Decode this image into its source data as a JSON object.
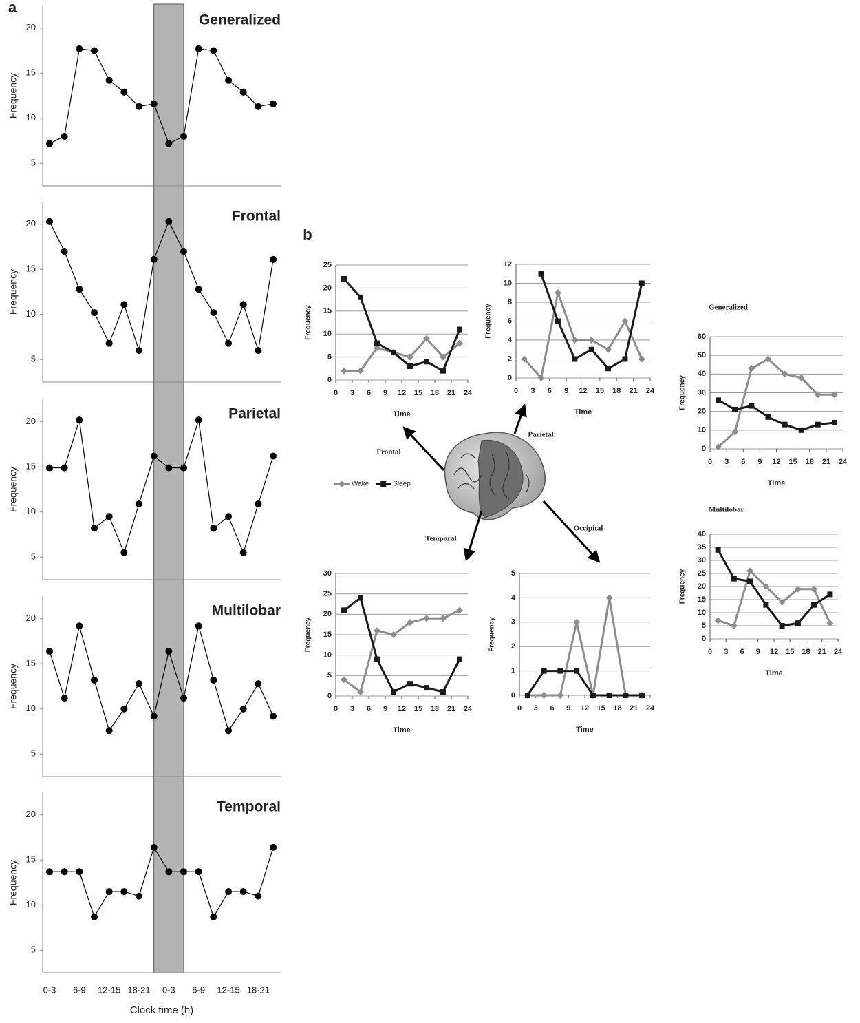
{
  "chart_data": [
    {
      "type": "line",
      "panel": "a",
      "title": "Generalized",
      "ylabel": "Frequency",
      "ylim": [
        2.5,
        22.5
      ],
      "yticks": [
        5,
        10,
        15,
        20
      ],
      "color": "#000000",
      "values": [
        7.2,
        8,
        17.7,
        17.5,
        14.2,
        12.9,
        11.3,
        11.6,
        7.2,
        8,
        17.7,
        17.5,
        14.2,
        12.9,
        11.3,
        11.6
      ]
    },
    {
      "type": "line",
      "title": "Frontal",
      "ylabel": "Frequency",
      "ylim": [
        2.5,
        22.5
      ],
      "yticks": [
        5,
        10,
        15,
        20
      ],
      "color": "#000000",
      "values": [
        20.3,
        17,
        12.8,
        10.2,
        6.8,
        11.1,
        6,
        16.1,
        20.3,
        17,
        12.8,
        10.2,
        6.8,
        11.1,
        6,
        16.1
      ]
    },
    {
      "type": "line",
      "title": "Parietal",
      "ylabel": "Frequency",
      "ylim": [
        2.5,
        22.5
      ],
      "yticks": [
        5,
        10,
        15,
        20
      ],
      "color": "#000000",
      "values": [
        14.9,
        14.9,
        20.2,
        8.2,
        9.5,
        5.5,
        10.9,
        16.2,
        14.9,
        14.9,
        20.2,
        8.2,
        9.5,
        5.5,
        10.9,
        16.2
      ]
    },
    {
      "type": "line",
      "title": "Multilobar",
      "ylabel": "Frequency",
      "ylim": [
        2.5,
        22.5
      ],
      "yticks": [
        5,
        10,
        15,
        20
      ],
      "color": "#000000",
      "values": [
        16.4,
        11.2,
        19.2,
        13.2,
        7.6,
        10,
        12.8,
        9.2,
        16.4,
        11.2,
        19.2,
        13.2,
        7.6,
        10,
        12.8,
        9.2
      ]
    },
    {
      "type": "line",
      "title": "Temporal",
      "ylabel": "Frequency",
      "xlabel": "Clock time (h)",
      "ylim": [
        2.5,
        22.5
      ],
      "yticks": [
        5,
        10,
        15,
        20
      ],
      "color": "#000000",
      "categories": [
        "0-3",
        null,
        "6-9",
        null,
        "12-15",
        null,
        "18-21",
        null,
        "0-3",
        null,
        "6-9",
        null,
        "12-15",
        null,
        "18-21",
        null
      ],
      "values": [
        13.7,
        13.7,
        13.7,
        8.7,
        11.5,
        11.5,
        11,
        16.4,
        13.7,
        13.7,
        13.7,
        8.7,
        11.5,
        11.5,
        11,
        16.4
      ]
    },
    {
      "type": "xyline",
      "panel": "b",
      "title": "Frontal",
      "xlabel": "Time",
      "ylabel": "Frequency",
      "grid": true,
      "xlim": [
        0,
        24
      ],
      "xticks": [
        0,
        3,
        6,
        9,
        12,
        15,
        18,
        21,
        24
      ],
      "ylim": [
        0,
        25
      ],
      "yticks": [
        0,
        5,
        10,
        15,
        20,
        25
      ],
      "x": [
        1.5,
        4.5,
        7.5,
        10.5,
        13.5,
        16.5,
        19.5,
        22.5
      ],
      "series": [
        {
          "color": "#8c8c8c",
          "values": [
            2,
            2,
            7,
            6,
            5,
            9,
            5,
            8
          ]
        },
        {
          "color": "#1a1a1a",
          "values": [
            22,
            18,
            8,
            6,
            3,
            4,
            2,
            11
          ]
        }
      ]
    },
    {
      "type": "xyline",
      "title": "Parietal",
      "xlabel": "Time",
      "ylabel": "Frequency",
      "grid": true,
      "xlim": [
        0,
        24
      ],
      "xticks": [
        0,
        3,
        6,
        9,
        12,
        15,
        18,
        21,
        24
      ],
      "ylim": [
        0,
        12
      ],
      "yticks": [
        0,
        2,
        4,
        6,
        8,
        10,
        12
      ],
      "x": [
        1.5,
        4.5,
        7.5,
        10.5,
        13.5,
        16.5,
        19.5,
        22.5
      ],
      "series": [
        {
          "color": "#8c8c8c",
          "values": [
            2,
            0,
            9,
            4,
            4,
            3,
            6,
            2
          ]
        },
        {
          "color": "#1a1a1a",
          "values": [
            null,
            11,
            6,
            2,
            3,
            1,
            2,
            10
          ]
        }
      ]
    },
    {
      "type": "xyline",
      "title": "Generalized",
      "xlabel": "Time",
      "ylabel": "Frequency",
      "grid": true,
      "xlim": [
        0,
        24
      ],
      "xticks": [
        0,
        3,
        6,
        9,
        12,
        15,
        18,
        21,
        24
      ],
      "ylim": [
        0,
        60
      ],
      "yticks": [
        0,
        10,
        20,
        30,
        40,
        50,
        60
      ],
      "x": [
        1.5,
        4.5,
        7.5,
        10.5,
        13.5,
        16.5,
        19.5,
        22.5
      ],
      "series": [
        {
          "color": "#8c8c8c",
          "values": [
            1,
            9,
            43,
            48,
            40,
            38,
            29,
            29
          ]
        },
        {
          "color": "#1a1a1a",
          "values": [
            26,
            21,
            23,
            17,
            13,
            10,
            13,
            14
          ]
        }
      ]
    },
    {
      "type": "xyline",
      "title": "Multilobar",
      "xlabel": "Time",
      "ylabel": "Frequency",
      "grid": true,
      "xlim": [
        0,
        24
      ],
      "xticks": [
        0,
        3,
        6,
        9,
        12,
        15,
        18,
        21,
        24
      ],
      "ylim": [
        0,
        40
      ],
      "yticks": [
        0,
        5,
        10,
        15,
        20,
        25,
        30,
        35,
        40
      ],
      "x": [
        1.5,
        4.5,
        7.5,
        10.5,
        13.5,
        16.5,
        19.5,
        22.5
      ],
      "series": [
        {
          "color": "#8c8c8c",
          "values": [
            7,
            5,
            26,
            20,
            14,
            19,
            19,
            6
          ]
        },
        {
          "color": "#1a1a1a",
          "values": [
            34,
            23,
            22,
            13,
            5,
            6,
            13,
            17
          ]
        }
      ]
    },
    {
      "type": "xyline",
      "title": "Temporal",
      "xlabel": "Time",
      "ylabel": "Frequency",
      "grid": true,
      "xlim": [
        0,
        24
      ],
      "xticks": [
        0,
        3,
        6,
        9,
        12,
        15,
        18,
        21,
        24
      ],
      "ylim": [
        0,
        30
      ],
      "yticks": [
        0,
        5,
        10,
        15,
        20,
        25,
        30
      ],
      "x": [
        1.5,
        4.5,
        7.5,
        10.5,
        13.5,
        16.5,
        19.5,
        22.5
      ],
      "series": [
        {
          "color": "#8c8c8c",
          "values": [
            4,
            1,
            16,
            15,
            18,
            19,
            19,
            21
          ]
        },
        {
          "color": "#1a1a1a",
          "values": [
            21,
            24,
            9,
            1,
            3,
            2,
            1,
            9
          ]
        }
      ]
    },
    {
      "type": "xyline",
      "title": "Occipital",
      "xlabel": "Time",
      "ylabel": "Frequency",
      "grid": true,
      "xlim": [
        0,
        24
      ],
      "xticks": [
        0,
        3,
        6,
        9,
        12,
        15,
        18,
        21,
        24
      ],
      "ylim": [
        0,
        5
      ],
      "yticks": [
        0,
        1,
        2,
        3,
        4,
        5
      ],
      "x": [
        1.5,
        4.5,
        7.5,
        10.5,
        13.5,
        16.5,
        19.5,
        22.5
      ],
      "series": [
        {
          "color": "#8c8c8c",
          "values": [
            0,
            0,
            0,
            3,
            0,
            4,
            0,
            0
          ]
        },
        {
          "color": "#1a1a1a",
          "values": [
            0,
            1,
            1,
            1,
            0,
            0,
            0,
            0
          ]
        }
      ]
    }
  ],
  "legend": [
    {
      "name": "Wake",
      "color": "#8c8c8c"
    },
    {
      "name": "Sleep",
      "color": "#1a1a1a"
    }
  ]
}
